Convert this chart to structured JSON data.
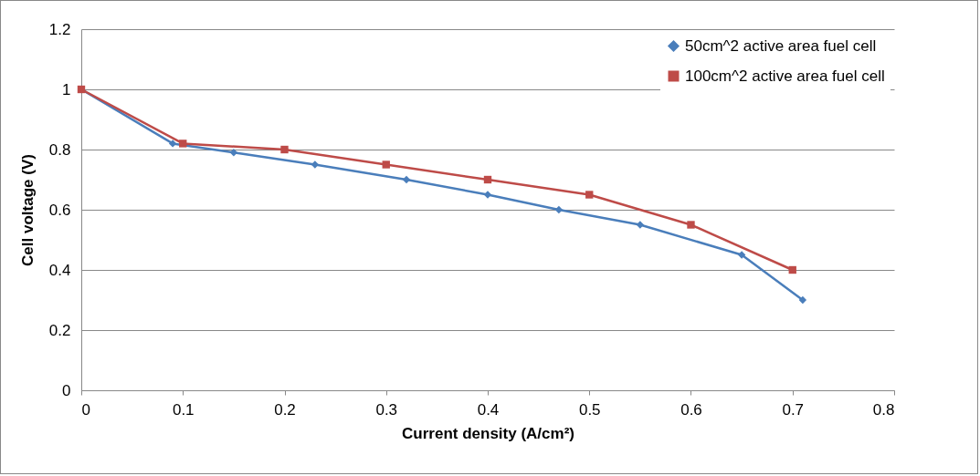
{
  "chart_data": {
    "type": "line",
    "xlabel": "Current density (A/cm²)",
    "ylabel": "Cell voltage (V)",
    "xlim": [
      0,
      0.8
    ],
    "xticks": [
      0,
      0.1,
      0.2,
      0.3,
      0.4,
      0.5,
      0.6,
      0.7,
      0.8
    ],
    "ylim": [
      0,
      1.2
    ],
    "yticks": [
      0,
      0.2,
      0.4,
      0.6,
      0.8,
      1,
      1.2
    ],
    "grid": "y",
    "legend": "top right",
    "line_style": "solid",
    "series": [
      {
        "name": "50cm^2 active area fuel cell",
        "color": "#4a7ebb",
        "marker": "diamond",
        "x": [
          0,
          0.09,
          0.15,
          0.23,
          0.32,
          0.4,
          0.47,
          0.55,
          0.65,
          0.71
        ],
        "values": [
          1,
          0.82,
          0.79,
          0.75,
          0.7,
          0.65,
          0.6,
          0.55,
          0.45,
          0.3
        ]
      },
      {
        "name": "100cm^2 active area fuel cell",
        "color": "#be4b48",
        "marker": "square",
        "x": [
          0,
          0.1,
          0.2,
          0.3,
          0.4,
          0.5,
          0.6,
          0.7
        ],
        "values": [
          1,
          0.82,
          0.8,
          0.75,
          0.7,
          0.65,
          0.55,
          0.4
        ]
      }
    ]
  }
}
